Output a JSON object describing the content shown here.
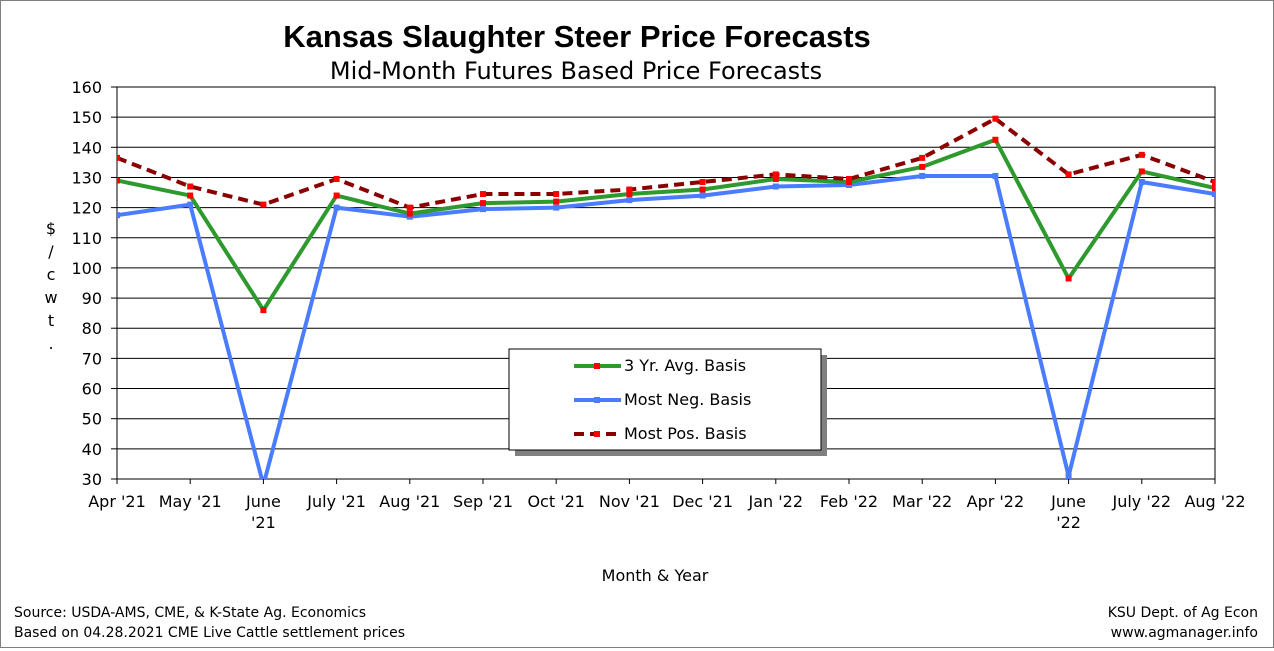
{
  "chart_data": {
    "type": "line",
    "title": "Kansas Slaughter Steer Price Forecasts",
    "subtitle": "Mid-Month Futures Based Price Forecasts",
    "xlabel": "Month & Year",
    "ylabel_chars": [
      "$",
      "/",
      "c",
      "w",
      "t",
      "."
    ],
    "ylim": [
      30,
      160
    ],
    "yticks": [
      30,
      40,
      50,
      60,
      70,
      80,
      90,
      100,
      110,
      120,
      130,
      140,
      150,
      160
    ],
    "grid": true,
    "legend_position": "center-bottom",
    "categories": [
      [
        "Apr '21"
      ],
      [
        "May '21"
      ],
      [
        "June",
        "'21"
      ],
      [
        "July '21"
      ],
      [
        "Aug '21"
      ],
      [
        "Sep '21"
      ],
      [
        "Oct '21"
      ],
      [
        "Nov '21"
      ],
      [
        "Dec '21"
      ],
      [
        "Jan '22"
      ],
      [
        "Feb '22"
      ],
      [
        "Mar '22"
      ],
      [
        "Apr '22"
      ],
      [
        "June",
        "'22"
      ],
      [
        "July '22"
      ],
      [
        "Aug '22"
      ]
    ],
    "series": [
      {
        "name": "3 Yr. Avg. Basis",
        "color": "#2e9a2e",
        "marker_color": "#ff0000",
        "style": "solid",
        "values": [
          129,
          124,
          86,
          124,
          118,
          121.5,
          122,
          124.5,
          126,
          129.5,
          128.5,
          133.5,
          142.5,
          96.5,
          132,
          126.5
        ]
      },
      {
        "name": "Most Neg. Basis",
        "color": "#4a7cff",
        "marker_color": "#4a7cff",
        "style": "solid",
        "values": [
          117.5,
          121,
          28,
          120,
          117,
          119.5,
          120,
          122.5,
          124,
          127,
          127.5,
          130.5,
          130.5,
          31,
          128.5,
          124.5
        ]
      },
      {
        "name": "Most Pos. Basis",
        "color": "#8b0000",
        "marker_color": "#ff0000",
        "style": "dashed",
        "values": [
          136.5,
          127,
          121,
          129.5,
          120,
          124.5,
          124.5,
          126,
          128.5,
          131,
          129.5,
          136.5,
          149.5,
          131,
          137.5,
          128.5
        ]
      }
    ]
  },
  "footer": {
    "source_line1": "Source:  USDA-AMS, CME, & K-State Ag. Economics",
    "source_line2": "Based on 04.28.2021 CME Live Cattle settlement prices",
    "credit_line1": "KSU Dept. of Ag Econ",
    "credit_line2": "www.agmanager.info"
  }
}
